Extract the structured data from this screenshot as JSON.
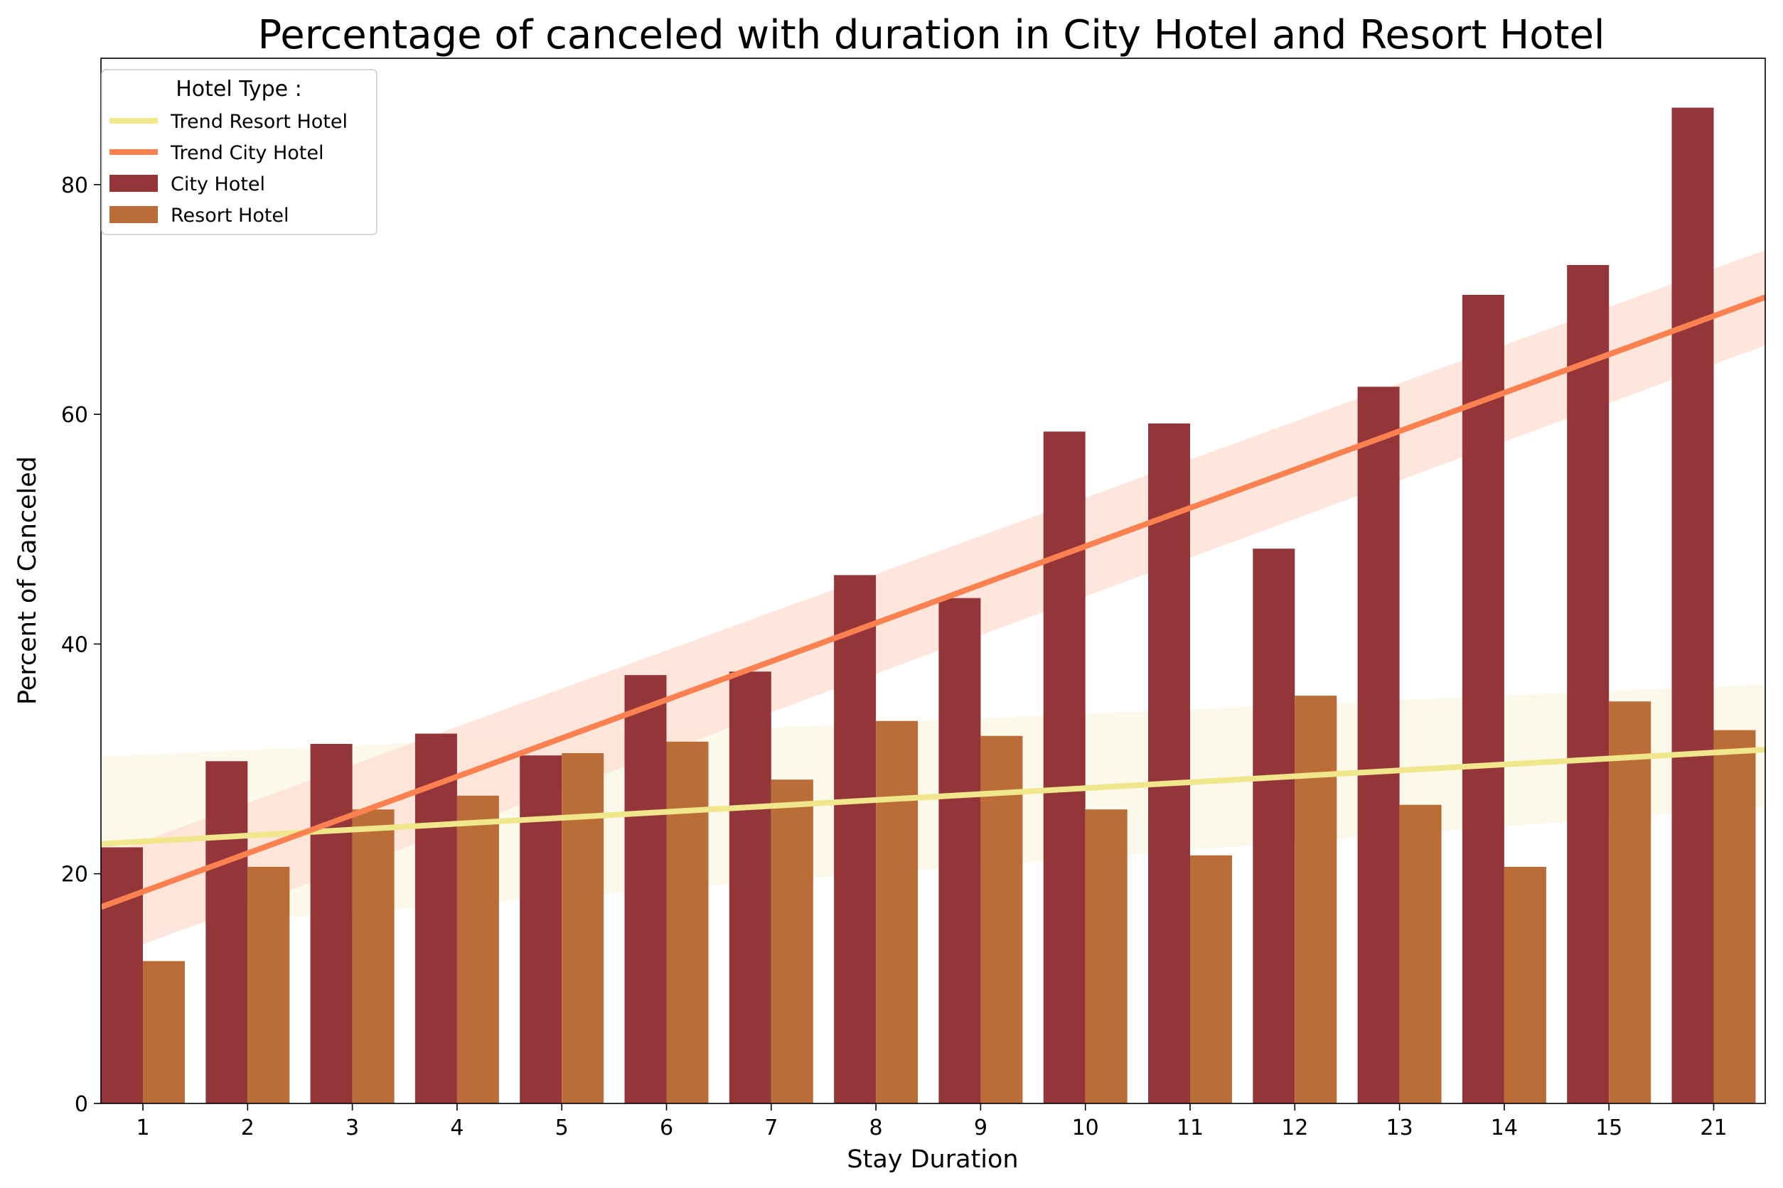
{
  "chart_data": {
    "type": "bar",
    "title": "Percentage of canceled with duration in City Hotel and Resort Hotel",
    "xlabel": "Stay Duration",
    "ylabel": "Percent of Canceled",
    "categories": [
      "1",
      "2",
      "3",
      "4",
      "5",
      "6",
      "7",
      "8",
      "9",
      "10",
      "11",
      "12",
      "13",
      "14",
      "15",
      "21"
    ],
    "ylim": [
      0,
      91
    ],
    "yticks": [
      0,
      20,
      40,
      60,
      80
    ],
    "grid": false,
    "series": [
      {
        "name": "City Hotel",
        "color": "#943639",
        "values": [
          22.3,
          29.8,
          31.3,
          32.2,
          30.3,
          37.3,
          37.6,
          46.0,
          44.0,
          58.5,
          59.2,
          48.3,
          62.4,
          70.4,
          73.0,
          86.7
        ]
      },
      {
        "name": "Resort Hotel",
        "color": "#bb6d37",
        "values": [
          12.4,
          20.6,
          25.6,
          26.8,
          30.5,
          31.5,
          28.2,
          33.3,
          32.0,
          25.6,
          21.6,
          35.5,
          26.0,
          20.6,
          35.0,
          32.5
        ]
      }
    ],
    "trend_lines": [
      {
        "name": "Trend Resort Hotel",
        "color": "#f0e68c",
        "band_color": "#fdf8e6",
        "start": 22.6,
        "end": 30.8,
        "band_start": [
          15.0,
          30.2
        ],
        "band_end": [
          25.8,
          36.5
        ]
      },
      {
        "name": "Trend City Hotel",
        "color": "#fb8150",
        "band_color": "#fee2d7",
        "start": 17.1,
        "end": 70.2,
        "band_start": [
          12.5,
          21.5
        ],
        "band_end": [
          66.0,
          74.3
        ]
      }
    ],
    "legend": {
      "title": "Hotel Type :",
      "placement": "top-left",
      "entries": [
        "Trend Resort Hotel",
        "Trend City Hotel",
        "City Hotel",
        "Resort Hotel"
      ]
    }
  }
}
